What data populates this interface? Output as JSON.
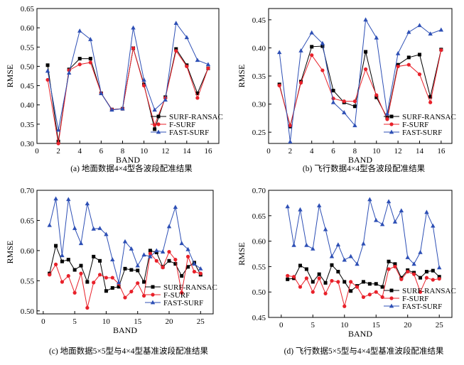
{
  "chart_data": [
    {
      "type": "line",
      "caption": "(a) 地面数据4×4型各波段配准结果",
      "xlabel": "BAND",
      "ylabel": "RMSE",
      "xlim": [
        0,
        17
      ],
      "ylim": [
        0.3,
        0.65
      ],
      "xticks": [
        0,
        2,
        4,
        6,
        8,
        10,
        12,
        14,
        16
      ],
      "xtick_labels": [
        "0",
        "2",
        "4",
        "6",
        "8",
        "10",
        "12",
        "14",
        "16"
      ],
      "yticks": [
        0.3,
        0.35,
        0.4,
        0.45,
        0.5,
        0.55,
        0.6,
        0.65
      ],
      "ytick_labels": [
        "0.30",
        "0.35",
        "0.40",
        "0.45",
        "0.50",
        "0.55",
        "0.60",
        "0.65"
      ],
      "legend_position": "bottom-right",
      "x": [
        1,
        2,
        3,
        4,
        5,
        6,
        7,
        8,
        9,
        10,
        11,
        12,
        13,
        14,
        15,
        16
      ],
      "series": [
        {
          "name": "SURF-RANSAC",
          "color": "#000000",
          "marker": "square",
          "values": [
            0.503,
            0.305,
            0.492,
            0.52,
            0.52,
            0.43,
            0.388,
            0.39,
            0.547,
            0.453,
            0.337,
            0.42,
            0.545,
            0.503,
            0.43,
            0.495
          ]
        },
        {
          "name": "F-SURF",
          "color": "#e8212a",
          "marker": "circle",
          "values": [
            0.465,
            0.3,
            0.49,
            0.505,
            0.51,
            0.43,
            0.388,
            0.39,
            0.547,
            0.45,
            0.348,
            0.418,
            0.54,
            0.5,
            0.418,
            0.495
          ]
        },
        {
          "name": "FAST-SURF",
          "color": "#2d4fb5",
          "marker": "triangle",
          "values": [
            0.488,
            0.335,
            0.483,
            0.592,
            0.57,
            0.43,
            0.387,
            0.39,
            0.6,
            0.465,
            0.387,
            0.413,
            0.612,
            0.575,
            0.516,
            0.505
          ]
        }
      ]
    },
    {
      "type": "line",
      "caption": "(b) 飞行数据4×4型各波段配准结果",
      "xlabel": "BAND",
      "ylabel": "RMSE",
      "xlim": [
        0,
        17
      ],
      "ylim": [
        0.23,
        0.47
      ],
      "xticks": [
        0,
        2,
        4,
        6,
        8,
        10,
        12,
        14,
        16
      ],
      "xtick_labels": [
        "0",
        "2",
        "4",
        "6",
        "8",
        "10",
        "12",
        "14",
        "16"
      ],
      "yticks": [
        0.25,
        0.3,
        0.35,
        0.4,
        0.45
      ],
      "ytick_labels": [
        "0.25",
        "0.30",
        "0.35",
        "0.40",
        "0.45"
      ],
      "legend_position": "bottom-right",
      "x": [
        1,
        2,
        3,
        4,
        5,
        6,
        7,
        8,
        9,
        10,
        11,
        12,
        13,
        14,
        15,
        16
      ],
      "series": [
        {
          "name": "SURF-RANSAC",
          "color": "#000000",
          "marker": "square",
          "values": [
            0.335,
            0.26,
            0.34,
            0.402,
            0.403,
            0.324,
            0.303,
            0.296,
            0.393,
            0.312,
            0.276,
            0.37,
            0.383,
            0.388,
            0.313,
            0.397
          ]
        },
        {
          "name": "F-SURF",
          "color": "#e8212a",
          "marker": "circle",
          "values": [
            0.333,
            0.262,
            0.338,
            0.387,
            0.36,
            0.31,
            0.305,
            0.305,
            0.362,
            0.316,
            0.273,
            0.367,
            0.37,
            0.353,
            0.303,
            0.396
          ]
        },
        {
          "name": "FAST-SURF",
          "color": "#2d4fb5",
          "marker": "triangle",
          "values": [
            0.392,
            0.233,
            0.395,
            0.427,
            0.408,
            0.303,
            0.285,
            0.262,
            0.45,
            0.418,
            0.283,
            0.39,
            0.428,
            0.44,
            0.425,
            0.432
          ]
        }
      ]
    },
    {
      "type": "line",
      "caption": "(c) 地面数据5×5型与4×4型基准波段配准结果",
      "xlabel": "BAND",
      "ylabel": "RMSE",
      "xlim": [
        -1,
        27
      ],
      "ylim": [
        0.495,
        0.7
      ],
      "xticks": [
        0,
        5,
        10,
        15,
        20,
        25
      ],
      "xtick_labels": [
        "0",
        "5",
        "10",
        "15",
        "20",
        "25"
      ],
      "yticks": [
        0.5,
        0.55,
        0.6,
        0.65,
        0.7
      ],
      "ytick_labels": [
        "0.50",
        "0.55",
        "0.60",
        "0.65",
        "0.70"
      ],
      "legend_position": "bottom-right",
      "x": [
        1,
        2,
        3,
        4,
        5,
        6,
        7,
        8,
        9,
        10,
        11,
        12,
        13,
        14,
        15,
        16,
        17,
        18,
        19,
        20,
        21,
        22,
        23,
        24,
        25
      ],
      "series": [
        {
          "name": "SURF-RANSAC",
          "color": "#000000",
          "marker": "square",
          "values": [
            0.562,
            0.608,
            0.582,
            0.585,
            0.568,
            0.575,
            0.548,
            0.59,
            0.583,
            0.533,
            0.538,
            0.54,
            0.57,
            0.568,
            0.567,
            0.548,
            0.6,
            0.597,
            0.573,
            0.583,
            0.578,
            0.558,
            0.573,
            0.58,
            0.56
          ]
        },
        {
          "name": "F-SURF",
          "color": "#e8212a",
          "marker": "circle",
          "values": [
            0.56,
            0.577,
            0.548,
            0.558,
            0.53,
            0.562,
            0.505,
            0.547,
            0.56,
            0.555,
            0.555,
            0.545,
            0.522,
            0.532,
            0.546,
            0.525,
            0.595,
            0.583,
            0.572,
            0.598,
            0.585,
            0.53,
            0.59,
            0.565,
            0.562
          ]
        },
        {
          "name": "FAST-SURF",
          "color": "#2d4fb5",
          "marker": "triangle",
          "values": [
            0.642,
            0.686,
            0.592,
            0.685,
            0.637,
            0.612,
            0.678,
            0.636,
            0.637,
            0.627,
            0.585,
            0.547,
            0.615,
            0.603,
            0.575,
            0.593,
            0.59,
            0.6,
            0.598,
            0.64,
            0.672,
            0.612,
            0.602,
            0.578,
            0.57
          ]
        }
      ]
    },
    {
      "type": "line",
      "caption": "(d) 飞行数据5×5型与4×4型基准波段配准结果",
      "xlabel": "BAND",
      "ylabel": "RMSE",
      "xlim": [
        -2,
        27
      ],
      "ylim": [
        0.45,
        0.7
      ],
      "xticks": [
        0,
        5,
        10,
        15,
        20,
        25
      ],
      "xtick_labels": [
        "0",
        "5",
        "10",
        "15",
        "20",
        "25"
      ],
      "yticks": [
        0.45,
        0.5,
        0.55,
        0.6,
        0.65,
        0.7
      ],
      "ytick_labels": [
        "0.45",
        "0.50",
        "0.55",
        "0.60",
        "0.65",
        "0.70"
      ],
      "legend_position": "bottom-right",
      "x": [
        1,
        2,
        3,
        4,
        5,
        6,
        7,
        8,
        9,
        10,
        11,
        12,
        13,
        14,
        15,
        16,
        17,
        18,
        19,
        20,
        21,
        22,
        23,
        24,
        25
      ],
      "series": [
        {
          "name": "SURF-RANSAC",
          "color": "#000000",
          "marker": "square",
          "values": [
            0.525,
            0.527,
            0.552,
            0.545,
            0.52,
            0.535,
            0.518,
            0.553,
            0.54,
            0.52,
            0.502,
            0.512,
            0.52,
            0.516,
            0.516,
            0.51,
            0.56,
            0.555,
            0.528,
            0.543,
            0.538,
            0.528,
            0.54,
            0.542,
            0.53
          ]
        },
        {
          "name": "F-SURF",
          "color": "#e8212a",
          "marker": "circle",
          "values": [
            0.532,
            0.53,
            0.51,
            0.527,
            0.5,
            0.527,
            0.497,
            0.522,
            0.52,
            0.472,
            0.52,
            0.51,
            0.49,
            0.495,
            0.5,
            0.49,
            0.545,
            0.55,
            0.525,
            0.54,
            0.535,
            0.5,
            0.528,
            0.524,
            0.526
          ]
        },
        {
          "name": "FAST-SURF",
          "color": "#2d4fb5",
          "marker": "triangle",
          "values": [
            0.668,
            0.592,
            0.662,
            0.592,
            0.585,
            0.67,
            0.623,
            0.57,
            0.593,
            0.563,
            0.57,
            0.555,
            0.595,
            0.682,
            0.641,
            0.633,
            0.678,
            0.638,
            0.66,
            0.568,
            0.555,
            0.578,
            0.657,
            0.63,
            0.548
          ]
        }
      ]
    }
  ]
}
